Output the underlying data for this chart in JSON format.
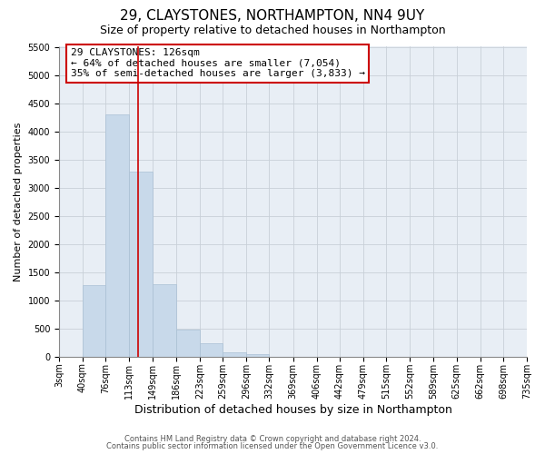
{
  "title": "29, CLAYSTONES, NORTHAMPTON, NN4 9UY",
  "subtitle": "Size of property relative to detached houses in Northampton",
  "xlabel": "Distribution of detached houses by size in Northampton",
  "ylabel": "Number of detached properties",
  "footnote1": "Contains HM Land Registry data © Crown copyright and database right 2024.",
  "footnote2": "Contains public sector information licensed under the Open Government Licence v3.0.",
  "bin_edges": [
    3,
    40,
    76,
    113,
    149,
    186,
    223,
    259,
    296,
    332,
    369,
    406,
    442,
    479,
    515,
    552,
    589,
    625,
    662,
    698,
    735
  ],
  "bin_counts": [
    0,
    1270,
    4300,
    3290,
    1290,
    480,
    240,
    80,
    50,
    0,
    0,
    0,
    0,
    0,
    0,
    0,
    0,
    0,
    0,
    0
  ],
  "bar_color": "#c8d9ea",
  "bar_edgecolor": "#aac0d4",
  "property_size": 126,
  "property_line_color": "#cc0000",
  "annotation_line1": "29 CLAYSTONES: 126sqm",
  "annotation_line2": "← 64% of detached houses are smaller (7,054)",
  "annotation_line3": "35% of semi-detached houses are larger (3,833) →",
  "annotation_box_edgecolor": "#cc0000",
  "ylim": [
    0,
    5500
  ],
  "yticks": [
    0,
    500,
    1000,
    1500,
    2000,
    2500,
    3000,
    3500,
    4000,
    4500,
    5000,
    5500
  ],
  "tick_labels": [
    "3sqm",
    "40sqm",
    "76sqm",
    "113sqm",
    "149sqm",
    "186sqm",
    "223sqm",
    "259sqm",
    "296sqm",
    "332sqm",
    "369sqm",
    "406sqm",
    "442sqm",
    "479sqm",
    "515sqm",
    "552sqm",
    "589sqm",
    "625sqm",
    "662sqm",
    "698sqm",
    "735sqm"
  ],
  "background_color": "#ffffff",
  "axes_facecolor": "#e8eef5",
  "grid_color": "#c8d0d8",
  "title_fontsize": 11,
  "subtitle_fontsize": 9,
  "xlabel_fontsize": 9,
  "ylabel_fontsize": 8,
  "tick_fontsize": 7,
  "annotation_fontsize": 8,
  "footnote_fontsize": 6
}
